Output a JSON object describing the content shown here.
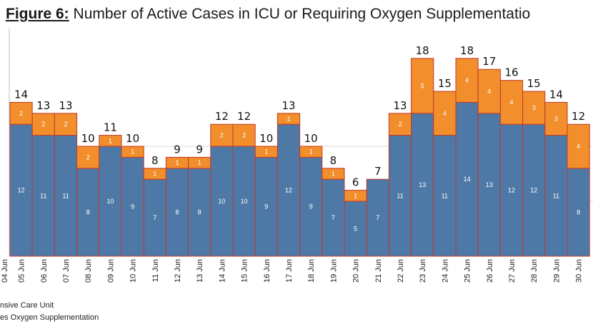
{
  "title": {
    "figure_label": "Figure 6:",
    "text": "Number of Active Cases in ICU or Requiring Oxygen Supplementatio"
  },
  "legend": {
    "items": [
      {
        "label": "nsive Care Unit",
        "color": "#4e79a7"
      },
      {
        "label": "es Oxygen Supplementation",
        "color": "#f28e2b"
      }
    ]
  },
  "colors": {
    "icu": "#4e79a7",
    "oxygen": "#f28e2b",
    "bar_border": "#c0392b",
    "grid": "#d9d9d9"
  },
  "chart_data": {
    "type": "bar",
    "stacked": true,
    "categories": [
      "04 Jun",
      "05 Jun",
      "06 Jun",
      "07 Jun",
      "08 Jun",
      "09 Jun",
      "10 Jun",
      "11 Jun",
      "12 Jun",
      "13 Jun",
      "14 Jun",
      "15 Jun",
      "16 Jun",
      "17 Jun",
      "18 Jun",
      "19 Jun",
      "20 Jun",
      "21 Jun",
      "22 Jun",
      "23 Jun",
      "24 Jun",
      "25 Jun",
      "26 Jun",
      "27 Jun",
      "28 Jun",
      "29 Jun",
      "30 Jun"
    ],
    "series": [
      {
        "key": "icu",
        "values": [
          null,
          12,
          11,
          11,
          8,
          10,
          9,
          7,
          8,
          8,
          10,
          10,
          9,
          12,
          9,
          7,
          5,
          7,
          11,
          13,
          11,
          14,
          13,
          12,
          12,
          11,
          8
        ]
      },
      {
        "key": "oxygen",
        "values": [
          null,
          2,
          2,
          2,
          2,
          1,
          1,
          1,
          1,
          1,
          2,
          2,
          1,
          1,
          1,
          1,
          1,
          0,
          2,
          5,
          4,
          4,
          4,
          4,
          3,
          3,
          4
        ]
      }
    ],
    "totals": [
      null,
      14,
      13,
      13,
      10,
      11,
      10,
      8,
      9,
      9,
      12,
      12,
      10,
      13,
      10,
      8,
      6,
      7,
      13,
      18,
      15,
      18,
      17,
      16,
      15,
      14,
      12
    ],
    "ylim": [
      0,
      19
    ],
    "gridlines": [
      5,
      10
    ],
    "grid": true,
    "xlabel": "",
    "ylabel": ""
  }
}
